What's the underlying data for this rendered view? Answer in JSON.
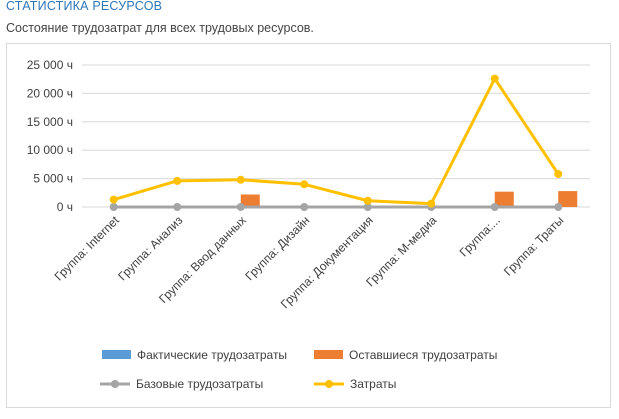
{
  "header": {
    "title": "СТАТИСТИКА РЕСУРСОВ",
    "subtitle": "Состояние трудозатрат для всех трудовых ресурсов."
  },
  "chart_data": {
    "type": "bar",
    "categories": [
      "Группа: Internet",
      "Группа: Анализ",
      "Группа: Ввод данных",
      "Группа: Дизайн",
      "Группа: Документация",
      "Группа: М-медиа",
      "Группа:...",
      "Группа: Траты"
    ],
    "y_ticks": [
      0,
      5000,
      10000,
      15000,
      20000,
      25000
    ],
    "y_tick_labels": [
      "0 ч",
      "5 000 ч",
      "10 000 ч",
      "15 000 ч",
      "20 000 ч",
      "25 000 ч"
    ],
    "ylim": [
      0,
      25000
    ],
    "grid": true,
    "legend_position": "bottom",
    "series": [
      {
        "name": "Фактические трудозатраты",
        "kind": "bar",
        "color": "#5b9bd5",
        "values": [
          0,
          0,
          0,
          0,
          0,
          0,
          0,
          0
        ]
      },
      {
        "name": "Оставшиеся трудозатраты",
        "kind": "bar",
        "color": "#ed7d31",
        "values": [
          0,
          0,
          2200,
          0,
          0,
          0,
          2700,
          2800
        ]
      },
      {
        "name": "Базовые трудозатраты",
        "kind": "line",
        "color": "#a5a5a5",
        "values": [
          0,
          0,
          0,
          0,
          0,
          0,
          0,
          0
        ]
      },
      {
        "name": "Затраты",
        "kind": "line",
        "color": "#ffc000",
        "values": [
          1300,
          4600,
          4800,
          4000,
          1100,
          600,
          22600,
          5800
        ]
      }
    ]
  }
}
